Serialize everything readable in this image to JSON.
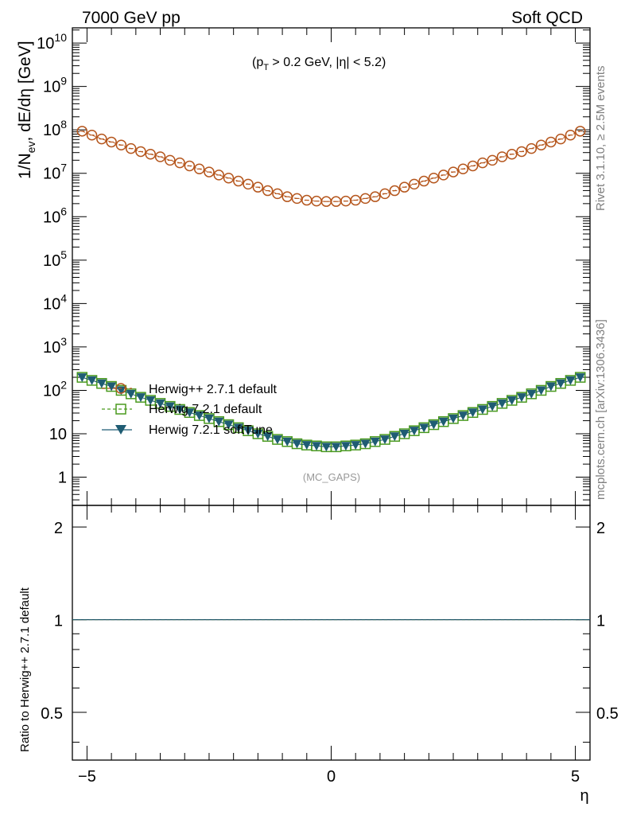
{
  "header": {
    "left": "7000 GeV pp",
    "right": "Soft QCD"
  },
  "side": {
    "rivet": "Rivet 3.1.10, ≥ 2.5M events",
    "mcplots": "mcplots.cern.ch [arXiv:1306.3436]"
  },
  "colors": {
    "herwigpp": "#b5561d",
    "herwig721": "#4a9a1e",
    "softtune": "#1f5c73"
  },
  "chart_data": [
    {
      "type": "scatter",
      "scale": "log",
      "annotation_parts": [
        "(p",
        "T",
        " > 0.2 GeV, |η| < 5.2)"
      ],
      "watermark": "(MC_GAPS)",
      "ylabel_parts": [
        "1/N",
        "ev",
        ", dE/dη [GeV]"
      ],
      "xlim": [
        -5.3,
        5.3
      ],
      "ylim_log10": [
        -0.65,
        10.35
      ],
      "ytick_labels": [
        {
          "exp": 0,
          "label": "1"
        },
        {
          "exp": 1,
          "label": "10"
        },
        {
          "exp": 2,
          "base": "10",
          "sup": "2"
        },
        {
          "exp": 3,
          "base": "10",
          "sup": "3"
        },
        {
          "exp": 4,
          "base": "10",
          "sup": "4"
        },
        {
          "exp": 5,
          "base": "10",
          "sup": "5"
        },
        {
          "exp": 6,
          "base": "10",
          "sup": "6"
        },
        {
          "exp": 7,
          "base": "10",
          "sup": "7"
        },
        {
          "exp": 8,
          "base": "10",
          "sup": "8"
        },
        {
          "exp": 9,
          "base": "10",
          "sup": "9"
        },
        {
          "exp": 10,
          "base": "10",
          "sup": "10"
        }
      ],
      "eta": [
        -5.1,
        -4.9,
        -4.7,
        -4.5,
        -4.3,
        -4.1,
        -3.9,
        -3.7,
        -3.5,
        -3.3,
        -3.1,
        -2.9,
        -2.7,
        -2.5,
        -2.3,
        -2.1,
        -1.9,
        -1.7,
        -1.5,
        -1.3,
        -1.1,
        -0.9,
        -0.7,
        -0.5,
        -0.3,
        -0.1,
        0.1,
        0.3,
        0.5,
        0.7,
        0.9,
        1.1,
        1.3,
        1.5,
        1.7,
        1.9,
        2.1,
        2.3,
        2.5,
        2.7,
        2.9,
        3.1,
        3.3,
        3.5,
        3.7,
        3.9,
        4.1,
        4.3,
        4.5,
        4.7,
        4.9,
        5.1
      ],
      "series": [
        {
          "name": "Herwig++ 2.7.1 default",
          "marker": "circle",
          "log10_values": [
            7.97,
            7.88,
            7.79,
            7.72,
            7.65,
            7.57,
            7.5,
            7.44,
            7.38,
            7.3,
            7.24,
            7.17,
            7.1,
            7.03,
            6.96,
            6.89,
            6.82,
            6.75,
            6.68,
            6.6,
            6.53,
            6.46,
            6.42,
            6.38,
            6.36,
            6.35,
            6.35,
            6.36,
            6.38,
            6.42,
            6.46,
            6.53,
            6.6,
            6.68,
            6.75,
            6.82,
            6.89,
            6.96,
            7.03,
            7.1,
            7.17,
            7.24,
            7.3,
            7.38,
            7.44,
            7.5,
            7.57,
            7.65,
            7.72,
            7.79,
            7.88,
            7.97
          ]
        },
        {
          "name": "Herwig 7.2.1 default",
          "marker": "square",
          "log10_values": [
            2.3,
            2.23,
            2.16,
            2.09,
            2.0,
            1.92,
            1.84,
            1.77,
            1.7,
            1.63,
            1.56,
            1.49,
            1.42,
            1.35,
            1.28,
            1.21,
            1.14,
            1.07,
            1.0,
            0.94,
            0.87,
            0.82,
            0.77,
            0.74,
            0.72,
            0.7,
            0.7,
            0.72,
            0.74,
            0.77,
            0.82,
            0.87,
            0.94,
            1.0,
            1.07,
            1.14,
            1.21,
            1.28,
            1.35,
            1.42,
            1.49,
            1.56,
            1.63,
            1.7,
            1.77,
            1.84,
            1.92,
            2.0,
            2.09,
            2.16,
            2.23,
            2.3
          ]
        },
        {
          "name": "Herwig 7.2.1 softTune",
          "marker": "triangle-down",
          "log10_values": [
            2.3,
            2.23,
            2.16,
            2.09,
            2.0,
            1.92,
            1.84,
            1.77,
            1.7,
            1.63,
            1.56,
            1.49,
            1.42,
            1.35,
            1.28,
            1.21,
            1.14,
            1.07,
            1.0,
            0.94,
            0.87,
            0.82,
            0.77,
            0.74,
            0.72,
            0.7,
            0.7,
            0.72,
            0.74,
            0.77,
            0.82,
            0.87,
            0.94,
            1.0,
            1.07,
            1.14,
            1.21,
            1.28,
            1.35,
            1.42,
            1.49,
            1.56,
            1.63,
            1.7,
            1.77,
            1.84,
            1.92,
            2.0,
            2.09,
            2.16,
            2.23,
            2.3
          ]
        }
      ]
    },
    {
      "type": "line",
      "ylabel": "Ratio to Herwig++ 2.7.1 default",
      "xlabel": "η",
      "xlim": [
        -5.3,
        5.3
      ],
      "ylim": [
        0.35,
        2.35
      ],
      "scale": "log",
      "yticks": [
        {
          "v": 0.5,
          "label": "0.5"
        },
        {
          "v": 1,
          "label": "1"
        },
        {
          "v": 2,
          "label": "2"
        }
      ],
      "xticks": [
        {
          "v": -5,
          "label": "−5"
        },
        {
          "v": 0,
          "label": "0"
        },
        {
          "v": 5,
          "label": "5"
        }
      ],
      "reference": 1
    }
  ]
}
